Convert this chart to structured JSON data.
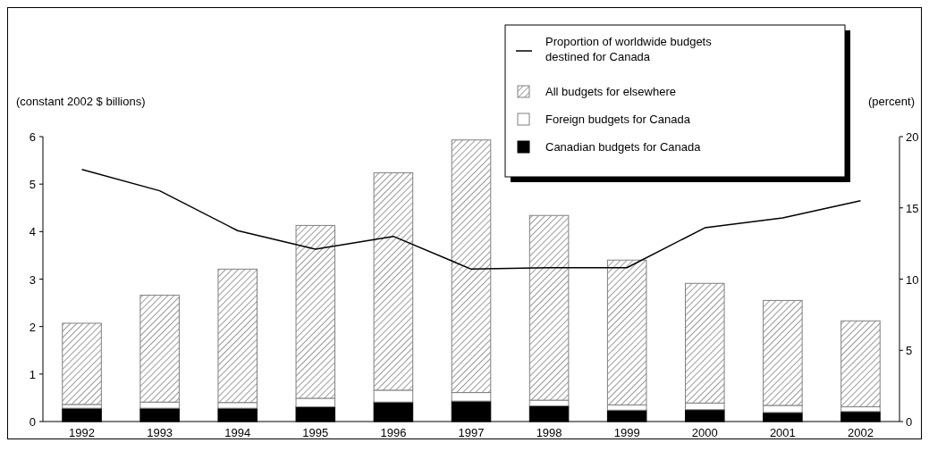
{
  "chart_data": {
    "type": "bar",
    "stacked": true,
    "ylabel": "(constant 2002 $ billions)",
    "y2label": "(percent)",
    "categories": [
      "1992",
      "1993",
      "1994",
      "1995",
      "1996",
      "1997",
      "1998",
      "1999",
      "2000",
      "2001",
      "2002"
    ],
    "ylim": [
      0,
      6
    ],
    "yticks": [
      0,
      1,
      2,
      3,
      4,
      5,
      6
    ],
    "y2lim": [
      0,
      20
    ],
    "y2ticks": [
      0,
      5,
      10,
      15,
      20
    ],
    "legend": "top right",
    "grid": false,
    "series": [
      {
        "name": "Canadian budgets for Canada",
        "color": "#000000",
        "values": [
          0.28,
          0.28,
          0.28,
          0.31,
          0.41,
          0.43,
          0.33,
          0.24,
          0.25,
          0.19,
          0.21
        ]
      },
      {
        "name": "Foreign budgets for Canada",
        "color": "#ffffff",
        "values": [
          0.08,
          0.13,
          0.12,
          0.18,
          0.25,
          0.18,
          0.12,
          0.11,
          0.14,
          0.15,
          0.1
        ]
      },
      {
        "name": "All budgets for elsewhere",
        "color": "#808080",
        "values": [
          1.71,
          2.25,
          2.81,
          3.64,
          4.58,
          5.32,
          3.89,
          3.05,
          2.52,
          2.21,
          1.81
        ]
      },
      {
        "name": "Proportion of worldwide budgets destined for Canada",
        "type": "line",
        "axis": "y2",
        "color": "#000000",
        "values": [
          17.7,
          16.2,
          13.4,
          12.1,
          13.0,
          10.7,
          10.8,
          10.8,
          13.6,
          14.3,
          15.5
        ]
      }
    ]
  }
}
